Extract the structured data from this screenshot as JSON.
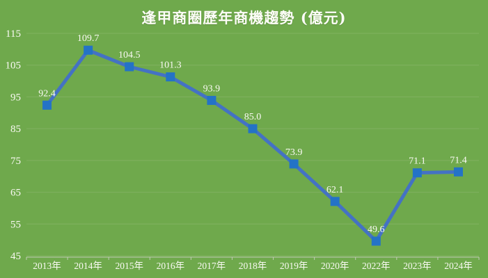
{
  "chart_data": {
    "type": "line",
    "title": "逢甲商圈歷年商機趨勢 (億元)",
    "categories": [
      "2013年",
      "2014年",
      "2015年",
      "2016年",
      "2017年",
      "2018年",
      "2019年",
      "2020年",
      "2022年",
      "2023年",
      "2024年"
    ],
    "series": [
      {
        "name": "商機",
        "values": [
          92.4,
          109.7,
          104.5,
          101.3,
          93.9,
          85.0,
          73.9,
          62.1,
          49.6,
          71.1,
          71.4
        ],
        "labels": [
          "92.4",
          "109.7",
          "104.5",
          "101.3",
          "93.9",
          "85.0",
          "73.9",
          "62.1",
          "49.6",
          "71.1",
          "71.4"
        ]
      }
    ],
    "xlabel": "",
    "ylabel": "",
    "ylim": [
      45,
      115
    ],
    "yticks": [
      115,
      105,
      95,
      85,
      75,
      65,
      55,
      45
    ],
    "grid": true,
    "legend_position": "none",
    "data_labels_shown": true,
    "colors": {
      "background": "#6FA94C",
      "gridline": "#81B261",
      "axis_line": "#C3CCB7",
      "line": "#4472C4",
      "marker": "#2473C6",
      "text": "#FAFAF4"
    }
  }
}
